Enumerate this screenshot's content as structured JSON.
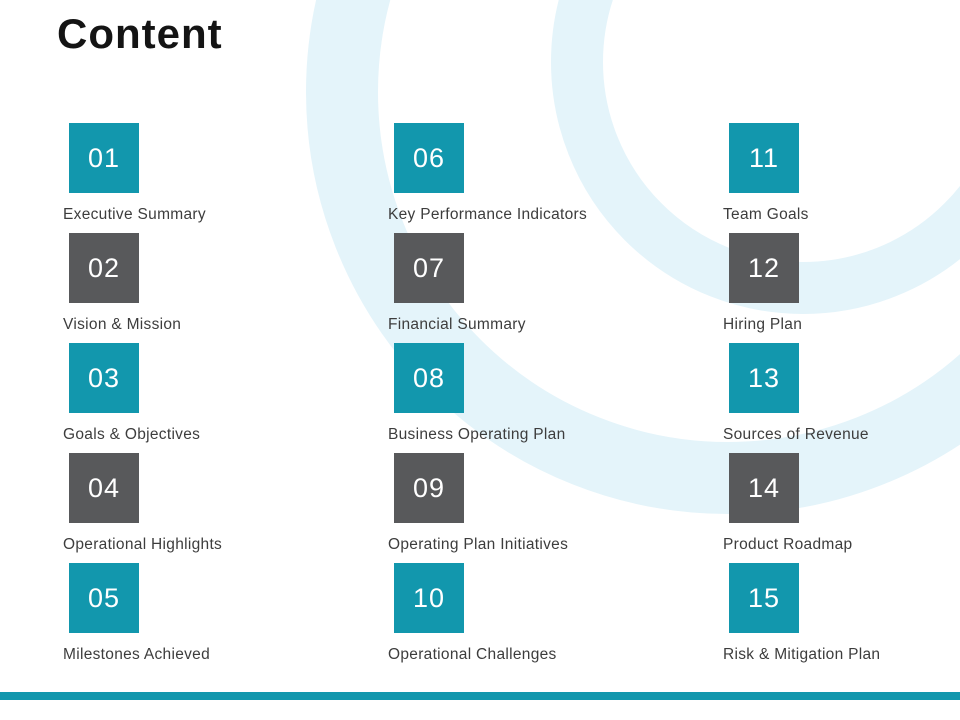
{
  "slide": {
    "title": "Content"
  },
  "colors": {
    "teal": "#1297ad",
    "gray": "#58595b",
    "arc": "#e4f4fa",
    "bottom_bar": "#1297ad"
  },
  "items": [
    {
      "number": "01",
      "label": "Executive Summary",
      "color": "teal"
    },
    {
      "number": "02",
      "label": "Vision & Mission",
      "color": "gray"
    },
    {
      "number": "03",
      "label": "Goals & Objectives",
      "color": "teal"
    },
    {
      "number": "04",
      "label": "Operational Highlights",
      "color": "gray"
    },
    {
      "number": "05",
      "label": "Milestones Achieved",
      "color": "teal"
    },
    {
      "number": "06",
      "label": "Key Performance Indicators",
      "color": "teal"
    },
    {
      "number": "07",
      "label": "Financial Summary",
      "color": "gray"
    },
    {
      "number": "08",
      "label": "Business Operating Plan",
      "color": "teal"
    },
    {
      "number": "09",
      "label": "Operating Plan Initiatives",
      "color": "gray"
    },
    {
      "number": "10",
      "label": "Operational Challenges",
      "color": "teal"
    },
    {
      "number": "11",
      "label": "Team Goals",
      "color": "teal"
    },
    {
      "number": "12",
      "label": "Hiring Plan",
      "color": "gray"
    },
    {
      "number": "13",
      "label": "Sources of Revenue",
      "color": "teal"
    },
    {
      "number": "14",
      "label": "Product Roadmap",
      "color": "gray"
    },
    {
      "number": "15",
      "label": "Risk & Mitigation Plan",
      "color": "teal"
    }
  ]
}
